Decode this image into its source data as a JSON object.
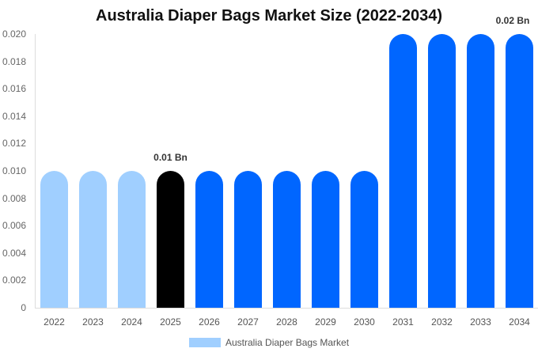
{
  "chart_data": {
    "type": "bar",
    "title": "Australia Diaper Bags Market Size (2022-2034)",
    "xlabel": "",
    "ylabel": "",
    "ylim": [
      0,
      0.02
    ],
    "yticks": [
      "0",
      "0.002",
      "0.004",
      "0.006",
      "0.008",
      "0.010",
      "0.012",
      "0.014",
      "0.016",
      "0.018",
      "0.020"
    ],
    "grid": false,
    "legend_position": "bottom",
    "categories": [
      "2022",
      "2023",
      "2024",
      "2025",
      "2026",
      "2027",
      "2028",
      "2029",
      "2030",
      "2031",
      "2032",
      "2033",
      "2034"
    ],
    "series": [
      {
        "name": "Australia Diaper Bags Market",
        "values": [
          0.01,
          0.01,
          0.01,
          0.01,
          0.01,
          0.01,
          0.01,
          0.01,
          0.01,
          0.02,
          0.02,
          0.02,
          0.02
        ],
        "colors": [
          "#a0cfff",
          "#a0cfff",
          "#a0cfff",
          "#000000",
          "#0066ff",
          "#0066ff",
          "#0066ff",
          "#0066ff",
          "#0066ff",
          "#0066ff",
          "#0066ff",
          "#0066ff",
          "#0066ff"
        ]
      }
    ],
    "annotations": [
      {
        "category": "2025",
        "text": "0.01 Bn"
      },
      {
        "category": "2034",
        "text": "0.02 Bn"
      }
    ]
  },
  "legend": {
    "label": "Australia Diaper Bags Market",
    "color": "#a0cfff"
  }
}
